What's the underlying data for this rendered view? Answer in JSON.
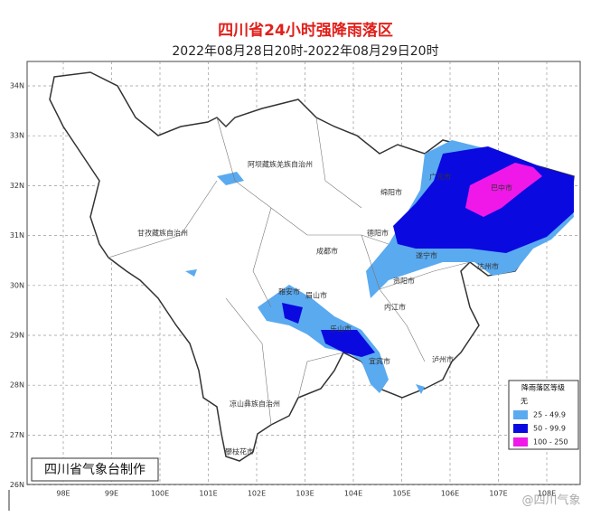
{
  "header": {
    "title": "四川省24小时强降雨落区",
    "subtitle": "2022年08月28日20时-2022年08月29日20时"
  },
  "lat_labels": [
    "34N",
    "33N",
    "32N",
    "31N",
    "30N",
    "29N",
    "28N",
    "27N",
    "26N"
  ],
  "lon_labels": [
    "98E",
    "99E",
    "100E",
    "101E",
    "102E",
    "103E",
    "104E",
    "105E",
    "106E",
    "107E",
    "108E"
  ],
  "places": [
    "阿坝藏族羌族自治州",
    "甘孜藏族自治州",
    "绵阳市",
    "广元市",
    "巴中市",
    "德阳市",
    "成都市",
    "遂宁市",
    "达州市",
    "雅安市",
    "眉山市",
    "资阳市",
    "内江市",
    "乐山市",
    "宜宾市",
    "泸州市",
    "凉山彝族自治州",
    "攀枝花市"
  ],
  "legend": {
    "title": "降雨落区等级",
    "items": [
      "无",
      "25 - 49.9",
      "50 - 99.9",
      "100 - 250"
    ]
  },
  "footer": "四川省气象台制作",
  "watermark": "@四川气象"
}
